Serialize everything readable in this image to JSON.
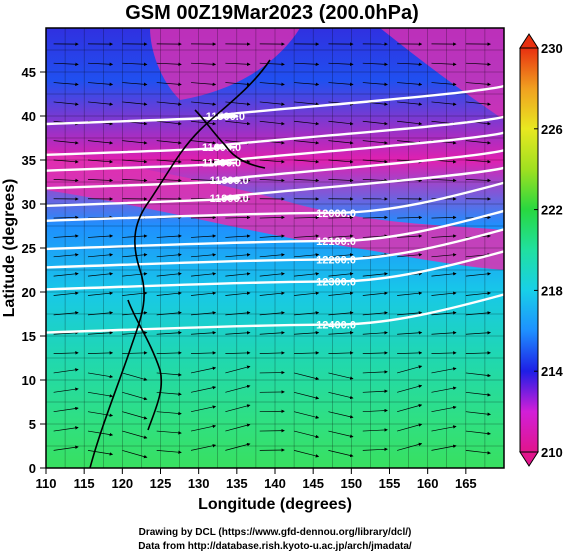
{
  "title": "GSM 00Z19Mar2023 (200.0hPa)",
  "chart_data": {
    "type": "heatmap",
    "title": "GSM 00Z19Mar2023 (200.0hPa)",
    "xlabel": "Longitude (degrees)",
    "ylabel": "Latitude (degrees)",
    "xlim": [
      110,
      170
    ],
    "ylim": [
      0,
      50
    ],
    "x_ticks": [
      "110",
      "115",
      "120",
      "125",
      "130",
      "135",
      "140",
      "145",
      "150",
      "155",
      "160",
      "165"
    ],
    "y_ticks": [
      "0",
      "5",
      "10",
      "15",
      "20",
      "25",
      "30",
      "35",
      "40",
      "45"
    ],
    "grid": true,
    "colorbar": {
      "placement": "right",
      "range": [
        210,
        230
      ],
      "ticks": [
        "210",
        "214",
        "218",
        "222",
        "226",
        "230"
      ],
      "colors": [
        "#e0158c",
        "#d21fd8",
        "#1e1ee6",
        "#1e90ff",
        "#18d0e8",
        "#20e0a0",
        "#28d840",
        "#a0e020",
        "#e8e820",
        "#f0a020",
        "#e83010"
      ]
    },
    "contours": [
      {
        "label": "11500.0",
        "lon": 133.5,
        "lat": 40.0
      },
      {
        "label": "11600.0",
        "lon": 133.0,
        "lat": 36.5
      },
      {
        "label": "11700.0",
        "lon": 133.0,
        "lat": 34.7
      },
      {
        "label": "11800.0",
        "lon": 134.0,
        "lat": 32.7
      },
      {
        "label": "11900.0",
        "lon": 134.0,
        "lat": 30.7
      },
      {
        "label": "12000.0",
        "lon": 148.0,
        "lat": 29.0
      },
      {
        "label": "12100.0",
        "lon": 148.0,
        "lat": 25.8
      },
      {
        "label": "12200.0",
        "lon": 148.0,
        "lat": 23.7
      },
      {
        "label": "12300.0",
        "lon": 148.0,
        "lat": 21.2
      },
      {
        "label": "12400.0",
        "lon": 148.0,
        "lat": 16.3
      }
    ]
  },
  "credits": {
    "line1": "Drawing by DCL (https://www.gfd-dennou.org/library/dcl/)",
    "line2": "Data from http://database.rish.kyoto-u.ac.jp/arch/jmadata/"
  }
}
